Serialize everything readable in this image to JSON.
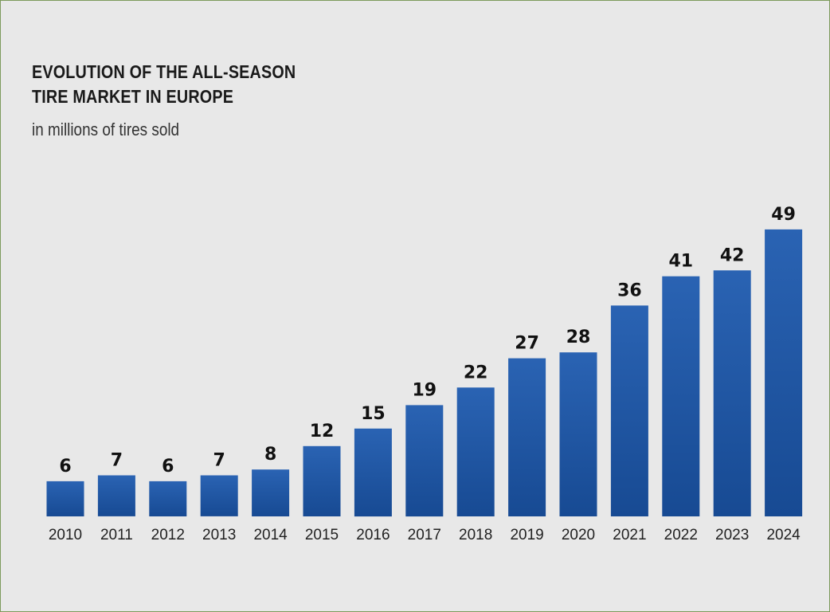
{
  "chart_data": {
    "type": "bar",
    "title_lines": [
      "EVOLUTION OF THE ALL-SEASON",
      "TIRE MARKET IN EUROPE"
    ],
    "subtitle": "in millions of tires sold",
    "categories": [
      "2010",
      "2011",
      "2012",
      "2013",
      "2014",
      "2015",
      "2016",
      "2017",
      "2018",
      "2019",
      "2020",
      "2021",
      "2022",
      "2023",
      "2024"
    ],
    "values": [
      6,
      7,
      6,
      7,
      8,
      12,
      15,
      19,
      22,
      27,
      28,
      36,
      41,
      42,
      49
    ],
    "bar_color": "#1a56a8",
    "grid": false
  }
}
